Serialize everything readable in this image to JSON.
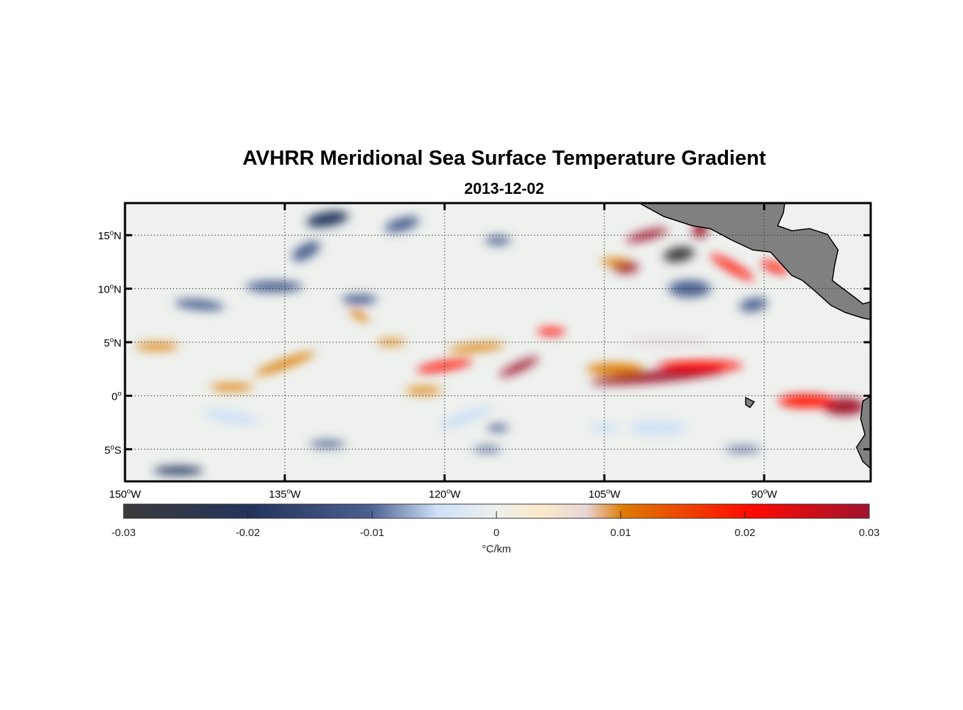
{
  "title": "AVHRR Meridional Sea Surface Temperature Gradient",
  "subtitle": "2013-12-02",
  "chart_data": {
    "type": "heatmap",
    "variable": "meridional SST gradient",
    "units": "°C/km",
    "lon_range": [
      -150,
      -80
    ],
    "lat_range": [
      -8,
      18
    ],
    "x_ticks": [
      {
        "v": -150,
        "main": "150",
        "hem": "W"
      },
      {
        "v": -135,
        "main": "135",
        "hem": "W"
      },
      {
        "v": -120,
        "main": "120",
        "hem": "W"
      },
      {
        "v": -105,
        "main": "105",
        "hem": "W"
      },
      {
        "v": -90,
        "main": "90",
        "hem": "W"
      }
    ],
    "y_ticks": [
      {
        "v": 15,
        "main": "15",
        "hem": "N"
      },
      {
        "v": 10,
        "main": "10",
        "hem": "N"
      },
      {
        "v": 5,
        "main": "5",
        "hem": "N"
      },
      {
        "v": 0,
        "main": "0",
        "hem": ""
      },
      {
        "v": -5,
        "main": "5",
        "hem": "S"
      }
    ],
    "grid": true,
    "colorbar": {
      "clim": [
        -0.03,
        0.03
      ],
      "ticks": [
        "-0.03",
        "-0.02",
        "-0.01",
        "0",
        "0.01",
        "0.02",
        "0.03"
      ],
      "label": "°C/km",
      "colors": [
        "#3a3a3a",
        "#23345c",
        "#4b6090",
        "#cde0f6",
        "#eef1ee",
        "#fbe9c8",
        "#e9d6d8",
        "#dd7b00",
        "#ff0a00",
        "#a0132f"
      ]
    },
    "land_color": "#808080"
  }
}
